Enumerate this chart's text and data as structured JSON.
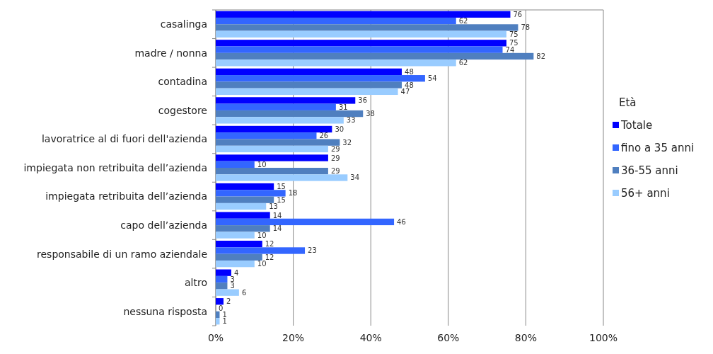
{
  "chart_data": {
    "type": "bar",
    "orientation": "horizontal",
    "legend_title": "Età",
    "legend": "right",
    "grid": "x",
    "data_labels": true,
    "categories": [
      "casalinga",
      "madre / nonna",
      "contadina",
      "cogestore",
      "lavoratrice al di fuori dell'azienda",
      "impiegata non retribuita dell’azienda",
      "impiegata retribuita dell’azienda ",
      "capo dell’azienda",
      "responsabile di un ramo aziendale",
      "altro",
      "nessuna risposta"
    ],
    "xlim": [
      0,
      100
    ],
    "xticks": [
      {
        "value": 0,
        "label": "0%"
      },
      {
        "value": 20,
        "label": "20%"
      },
      {
        "value": 40,
        "label": "40%"
      },
      {
        "value": 60,
        "label": "60%"
      },
      {
        "value": 80,
        "label": "80%"
      },
      {
        "value": 100,
        "label": "100%"
      }
    ],
    "series": [
      {
        "name": "Totale",
        "color": "#0000ff",
        "values": [
          76,
          75,
          48,
          36,
          30,
          29,
          15,
          14,
          12,
          4,
          2
        ]
      },
      {
        "name": "fino a 35 anni",
        "color": "#3366ff",
        "values": [
          62,
          74,
          54,
          31,
          26,
          10,
          18,
          46,
          23,
          3,
          0
        ]
      },
      {
        "name": "36-55 anni",
        "color": "#4f7fbf",
        "values": [
          78,
          82,
          48,
          38,
          32,
          29,
          15,
          14,
          12,
          3,
          1
        ]
      },
      {
        "name": "56+ anni",
        "color": "#99ccff",
        "values": [
          75,
          62,
          47,
          33,
          29,
          34,
          13,
          10,
          10,
          6,
          1
        ]
      }
    ]
  }
}
